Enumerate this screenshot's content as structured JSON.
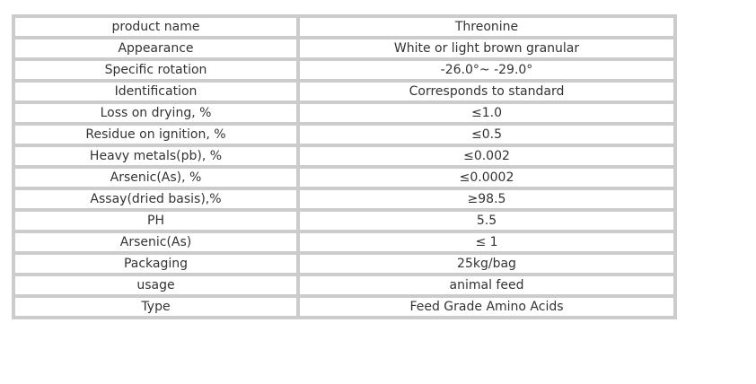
{
  "table": {
    "border_color": "#cccccc",
    "text_color": "#333333",
    "rows": [
      {
        "label": "product name",
        "value": "Threonine"
      },
      {
        "label": "Appearance",
        "value": "White or light brown granular"
      },
      {
        "label": "Specific rotation",
        "value": "-26.0°~ -29.0°"
      },
      {
        "label": "Identification",
        "value": "Corresponds to standard"
      },
      {
        "label": "Loss on drying, %",
        "value": "≤1.0"
      },
      {
        "label": "Residue on ignition, %",
        "value": "≤0.5"
      },
      {
        "label": "Heavy metals(pb), %",
        "value": "≤0.002"
      },
      {
        "label": "Arsenic(As), %",
        "value": "≤0.0002"
      },
      {
        "label": "Assay(dried basis),%",
        "value": "≥98.5"
      },
      {
        "label": "PH",
        "value": "5.5"
      },
      {
        "label": "Arsenic(As)",
        "value": "≤ 1"
      },
      {
        "label": "Packaging",
        "value": "25kg/bag"
      },
      {
        "label": "usage",
        "value": "animal feed"
      },
      {
        "label": "Type",
        "value": "Feed Grade Amino Acids"
      }
    ]
  }
}
